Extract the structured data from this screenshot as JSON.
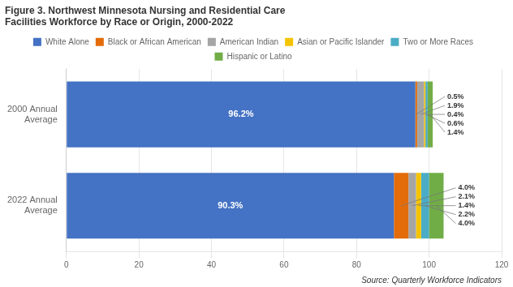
{
  "chart_data": {
    "type": "bar",
    "orientation": "horizontal",
    "stacked": true,
    "title": "Figure 3. Northwest Minnesota Nursing and Residential Care\nFacilities Workforce by Race or Origin, 2000-2022",
    "annotations": [
      "Source: Quarterly Workforce Indicators"
    ],
    "categories": [
      "2000 Annual\nAverage",
      "2022 Annual\nAverage"
    ],
    "series": [
      {
        "name": "White Alone",
        "color": "#4472C4",
        "values": [
          96.2,
          90.3
        ],
        "value_labels": [
          "96.2%",
          "90.3%"
        ]
      },
      {
        "name": "Black or African American",
        "color": "#E36C09",
        "values": [
          0.5,
          4.0
        ],
        "value_labels": [
          "0.5%",
          "4.0%"
        ]
      },
      {
        "name": "American Indian",
        "color": "#A5A5A5",
        "values": [
          1.9,
          2.1
        ],
        "value_labels": [
          "1.9%",
          "2.1%"
        ]
      },
      {
        "name": "Asian or Pacific Islander",
        "color": "#F5C400",
        "values": [
          0.4,
          1.4
        ],
        "value_labels": [
          "0.4%",
          "1.4%"
        ]
      },
      {
        "name": "Two or More Races",
        "color": "#4BACC6",
        "values": [
          0.6,
          2.2
        ],
        "value_labels": [
          "0.6%",
          "2.2%"
        ]
      },
      {
        "name": "Hispanic or Latino",
        "color": "#70AD47",
        "values": [
          1.4,
          4.0
        ],
        "value_labels": [
          "1.4%",
          "4.0%"
        ]
      }
    ],
    "data_labels": true,
    "xlim": [
      0,
      120
    ],
    "xticks": [
      0,
      20,
      40,
      60,
      80,
      100,
      120
    ],
    "grid": true,
    "legend": "top"
  }
}
